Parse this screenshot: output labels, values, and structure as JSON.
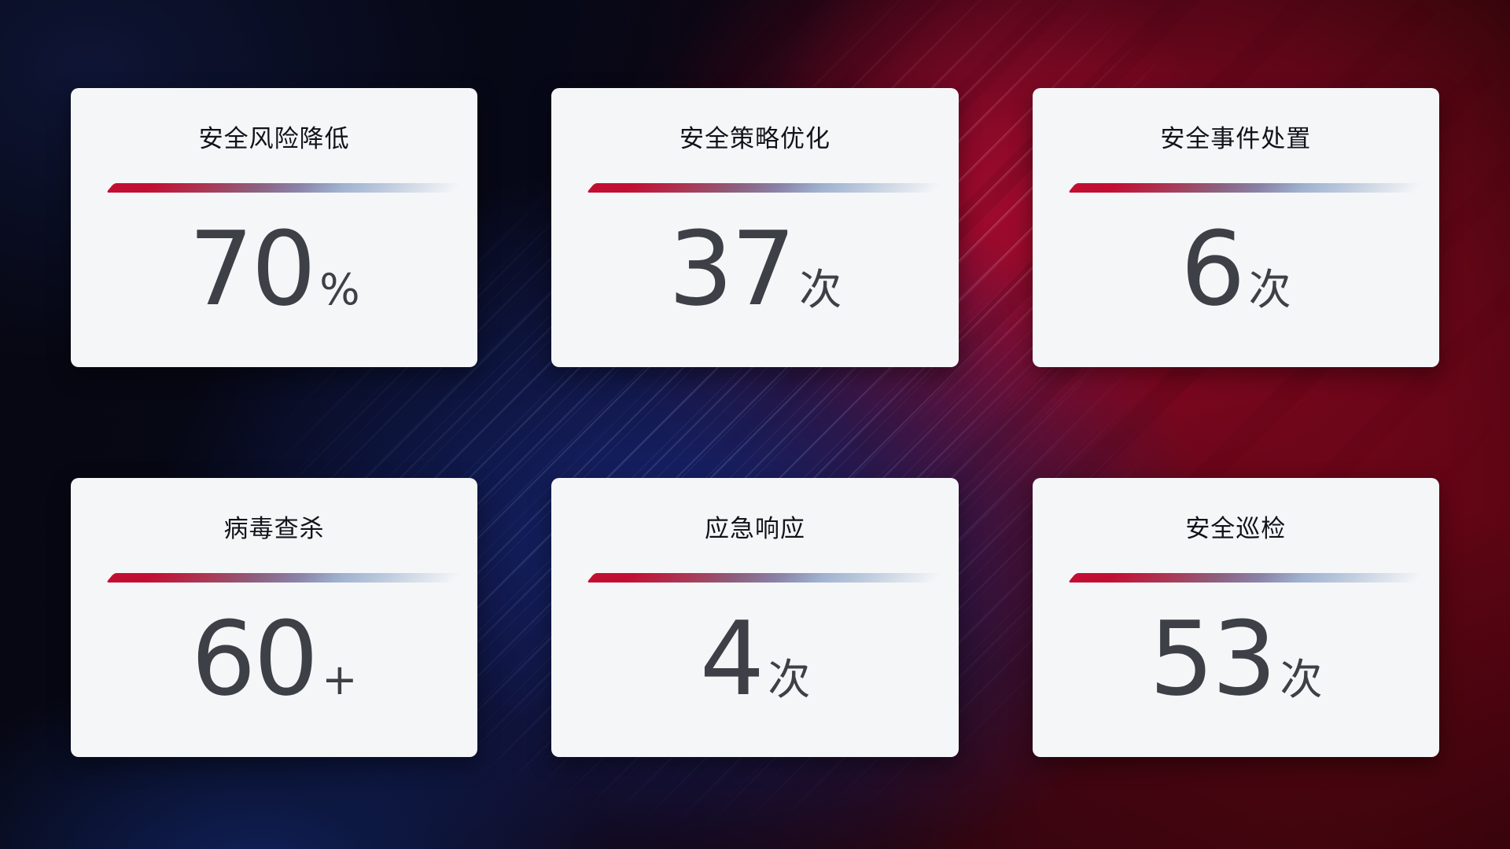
{
  "theme": {
    "card_background": "#f5f6f8",
    "title_color": "#10131a",
    "value_color": "#3d4046",
    "divider_red": "#c30e33",
    "divider_blue": "#9fb2cf",
    "background_navy": "#0a0f2a",
    "background_blue_glow": "#17287a",
    "background_red_bright": "#a50d30",
    "background_red_dark": "#2a040a"
  },
  "cards": [
    {
      "id": "risk-reduction",
      "title": "安全风险降低",
      "value": "70",
      "unit": "%"
    },
    {
      "id": "policy-optimization",
      "title": "安全策略优化",
      "value": "37",
      "unit": "次"
    },
    {
      "id": "incident-handling",
      "title": "安全事件处置",
      "value": "6",
      "unit": "次"
    },
    {
      "id": "virus-scan",
      "title": "病毒查杀",
      "value": "60",
      "unit": "+"
    },
    {
      "id": "emergency-response",
      "title": "应急响应",
      "value": "4",
      "unit": "次"
    },
    {
      "id": "security-inspection",
      "title": "安全巡检",
      "value": "53",
      "unit": "次"
    }
  ]
}
